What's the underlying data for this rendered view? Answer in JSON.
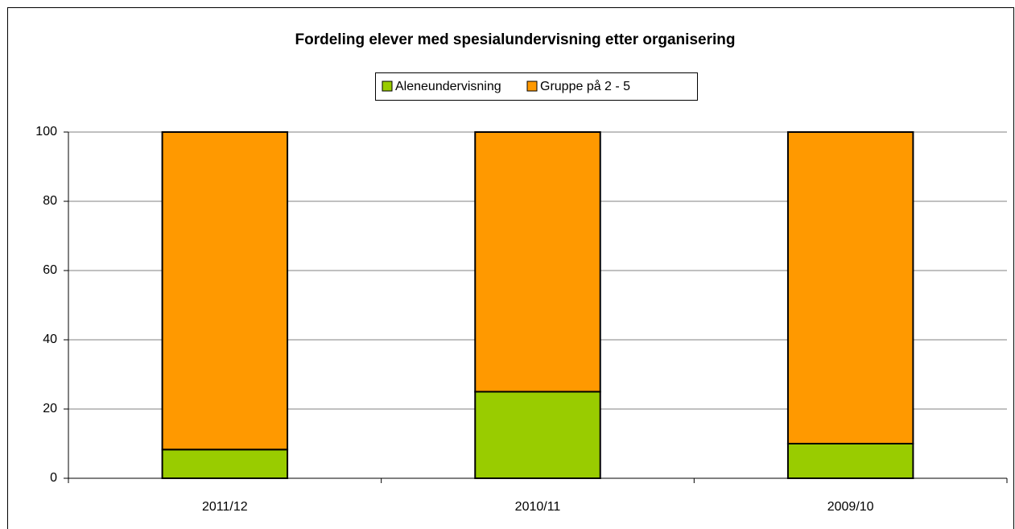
{
  "chart_data": {
    "type": "stacked_bar",
    "title": "Fordeling elever med spesialundervisning etter organisering",
    "categories": [
      "2011/12",
      "2010/11",
      "2009/10"
    ],
    "series": [
      {
        "name": "Aleneundervisning",
        "color": "#99cc00",
        "values": [
          8.3,
          25,
          10
        ]
      },
      {
        "name": "Gruppe på 2 - 5",
        "color": "#ff9900",
        "values": [
          91.7,
          75,
          90
        ]
      }
    ],
    "ylim": [
      0,
      100
    ],
    "yticks": [
      0,
      20,
      40,
      60,
      80,
      100
    ],
    "grid": true,
    "legend": "top"
  }
}
